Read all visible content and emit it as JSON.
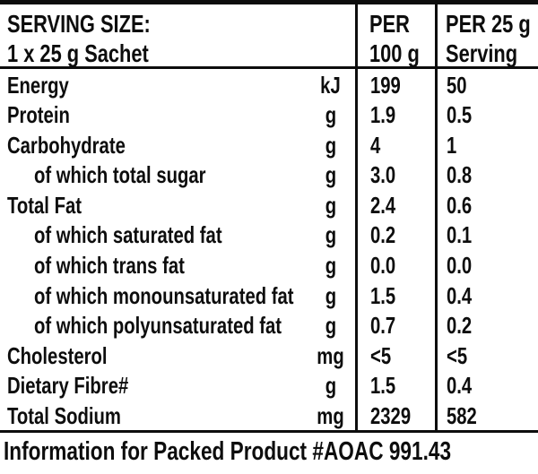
{
  "header": {
    "serving_size_line1": "SERVING SIZE:",
    "serving_size_line2": "1 x 25 g Sachet",
    "per_100g_line1": "PER",
    "per_100g_line2": "100 g",
    "per_serving_line1": "PER 25 g",
    "per_serving_line2": "Serving"
  },
  "rows": [
    {
      "label": "Energy",
      "unit": "kJ",
      "per_100g": "199",
      "per_25g": "50"
    },
    {
      "label": "Protein",
      "unit": "g",
      "per_100g": "1.9",
      "per_25g": "0.5"
    },
    {
      "label": "Carbohydrate",
      "unit": "g",
      "per_100g": "4",
      "per_25g": "1"
    },
    {
      "label": "of which total sugar",
      "unit": "g",
      "per_100g": "3.0",
      "per_25g": "0.8"
    },
    {
      "label": "Total Fat",
      "unit": "g",
      "per_100g": "2.4",
      "per_25g": "0.6"
    },
    {
      "label": "of which saturated fat",
      "unit": "g",
      "per_100g": "0.2",
      "per_25g": "0.1"
    },
    {
      "label": "of which trans fat",
      "unit": "g",
      "per_100g": "0.0",
      "per_25g": "0.0"
    },
    {
      "label": "of which monounsaturated fat",
      "unit": "g",
      "per_100g": "1.5",
      "per_25g": "0.4"
    },
    {
      "label": "of which polyunsaturated fat",
      "unit": "g",
      "per_100g": "0.7",
      "per_25g": "0.2"
    },
    {
      "label": "Cholesterol",
      "unit": "mg",
      "per_100g": "<5",
      "per_25g": "<5"
    },
    {
      "label": "Dietary Fibre#",
      "unit": "g",
      "per_100g": "1.5",
      "per_25g": "0.4"
    },
    {
      "label": "Total Sodium",
      "unit": "mg",
      "per_100g": "2329",
      "per_25g": "582"
    }
  ],
  "footer": {
    "note": "Information for Packed Product #AOAC 991.43"
  },
  "colors": {
    "text": "#0d0d0d",
    "rule": "#0d0d0d",
    "background": "#ffffff"
  }
}
